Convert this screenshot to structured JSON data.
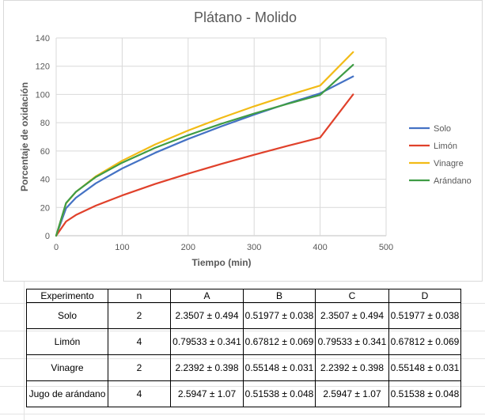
{
  "chart_data": {
    "type": "line",
    "title": "Plátano - Molido",
    "xlabel": "Tiempo (min)",
    "ylabel": "Porcentaje de oxidación",
    "xlim": [
      0,
      500
    ],
    "ylim": [
      0,
      140
    ],
    "xticks": [
      "0",
      "100",
      "200",
      "300",
      "400",
      "500"
    ],
    "yticks": [
      "0",
      "20",
      "40",
      "60",
      "80",
      "100",
      "120",
      "140"
    ],
    "grid": true,
    "legend_position": "right",
    "x": [
      0,
      15,
      30,
      60,
      100,
      150,
      200,
      250,
      300,
      350,
      400,
      450
    ],
    "series": [
      {
        "name": "Solo",
        "color": "#4472C4",
        "values": [
          0,
          19.5,
          26.9,
          37.1,
          47.6,
          58.7,
          68.5,
          77.4,
          85.7,
          93.5,
          100.8,
          112.8
        ]
      },
      {
        "name": "Limón",
        "color": "#E0412B",
        "values": [
          0,
          10.1,
          14.7,
          21.3,
          28.5,
          36.6,
          43.9,
          50.8,
          57.3,
          63.5,
          69.5,
          100.0
        ]
      },
      {
        "name": "Vinagre",
        "color": "#F2BB16",
        "values": [
          0,
          22.9,
          31.0,
          42.0,
          53.1,
          64.6,
          74.5,
          83.4,
          91.6,
          99.2,
          106.3,
          130.0
        ]
      },
      {
        "name": "Arándano",
        "color": "#3F9C45",
        "values": [
          0,
          23.2,
          31.1,
          41.5,
          51.7,
          62.2,
          71.2,
          79.2,
          86.5,
          93.3,
          99.6,
          121.0
        ]
      }
    ]
  },
  "table": {
    "headers": [
      "Experimento",
      "n",
      "A",
      "B",
      "C",
      "D"
    ],
    "rows": [
      {
        "exp": "Solo",
        "n": "2",
        "a": "2.3507 ± 0.494",
        "b": "0.51977 ± 0.038",
        "c": "2.3507 ± 0.494",
        "d": "0.51977 ± 0.038"
      },
      {
        "exp": "Limón",
        "n": "4",
        "a": "0.79533 ± 0.341",
        "b": "0.67812 ± 0.069",
        "c": "0.79533 ± 0.341",
        "d": "0.67812 ± 0.069"
      },
      {
        "exp": "Vinagre",
        "n": "2",
        "a": "2.2392 ± 0.398",
        "b": "0.55148 ± 0.031",
        "c": "2.2392 ± 0.398",
        "d": "0.55148 ± 0.031"
      },
      {
        "exp": "Jugo de arándano",
        "n": "4",
        "a": "2.5947 ± 1.07",
        "b": "0.51538 ± 0.048",
        "c": "2.5947 ± 1.07",
        "d": "0.51538 ± 0.048"
      }
    ]
  }
}
